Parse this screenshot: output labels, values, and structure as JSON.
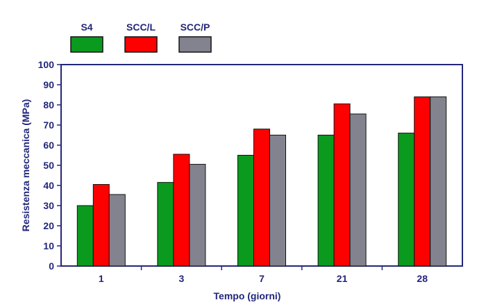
{
  "chart_data": {
    "type": "bar",
    "categories": [
      "1",
      "3",
      "7",
      "21",
      "28"
    ],
    "series": [
      {
        "name": "S4",
        "color": "#0a9a1e",
        "values": [
          30,
          41.5,
          55,
          65,
          66
        ]
      },
      {
        "name": "SCC/L",
        "color": "#ff0000",
        "values": [
          40.5,
          55.5,
          68,
          80.5,
          84
        ]
      },
      {
        "name": "SCC/P",
        "color": "#83838f",
        "values": [
          35.5,
          50.5,
          65,
          75.5,
          84
        ]
      }
    ],
    "xlabel": "Tempo (giorni)",
    "ylabel": "Resistenza meccanica (MPa)",
    "ylim": [
      0,
      100
    ],
    "yticks": [
      0,
      10,
      20,
      30,
      40,
      50,
      60,
      70,
      80,
      90,
      100
    ],
    "grid": false,
    "legend_position": "top-left",
    "axis_color": "#22267a"
  }
}
